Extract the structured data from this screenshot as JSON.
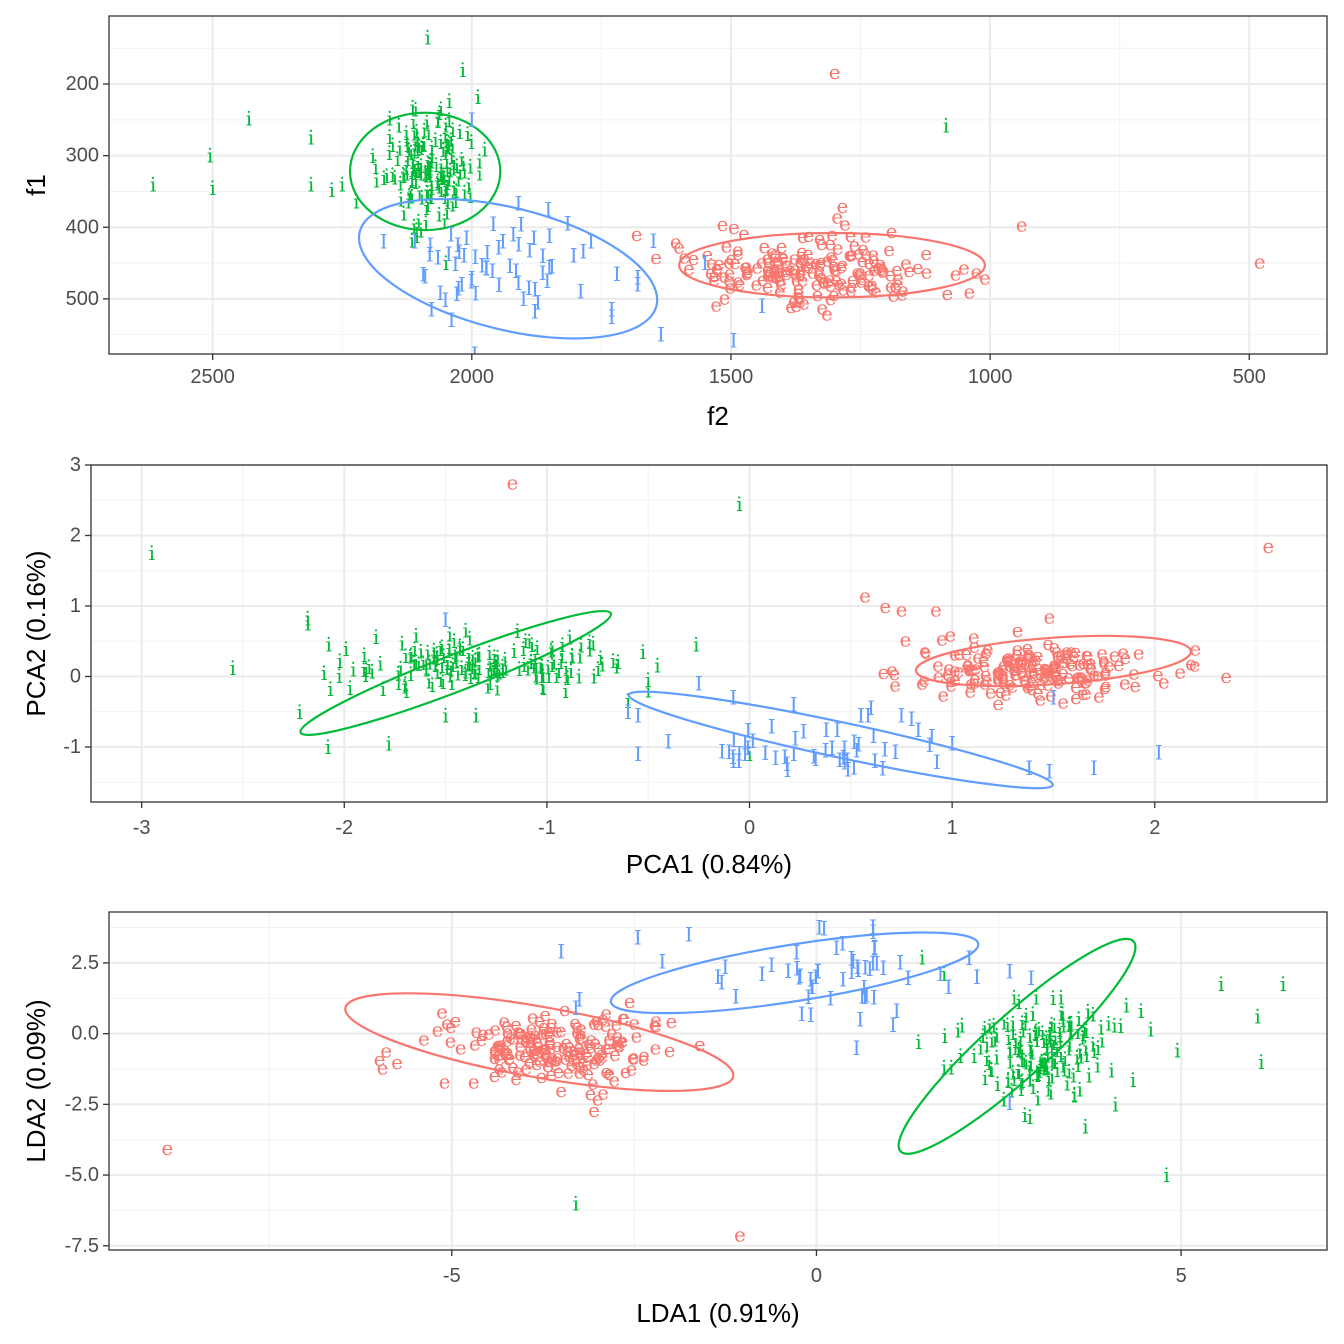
{
  "chart_data": [
    {
      "type": "scatter",
      "xlabel": "f2",
      "ylabel": "f1",
      "xlim": [
        2700,
        350
      ],
      "ylim": [
        577,
        105
      ],
      "xticks": [
        2500,
        2000,
        1500,
        1000,
        500
      ],
      "xtick_labels": [
        "2500",
        "2000",
        "1500",
        "1000",
        "500"
      ],
      "yticks": [
        200,
        300,
        400,
        500
      ],
      "ytick_labels": [
        "200",
        "300",
        "400",
        "500"
      ],
      "grid": true,
      "series": [
        {
          "name": "e",
          "color": "#F8766D",
          "clusters": [
            {
              "cx": 1330,
              "cy": 455,
              "sx": 120,
              "sy": 22,
              "n": 190
            }
          ],
          "points": [
            [
              1300,
              183
            ],
            [
              480,
              448
            ],
            [
              1285,
              370
            ],
            [
              1295,
              385
            ],
            [
              1280,
              395
            ],
            [
              1395,
              460
            ],
            [
              1040,
              490
            ],
            [
              1010,
              470
            ]
          ],
          "ellipse": {
            "cx": 1305,
            "cy": 453,
            "rx": 295,
            "ry": 45
          }
        },
        {
          "name": "i",
          "color": "#00BA38",
          "clusters": [
            {
              "cx": 2085,
              "cy": 320,
              "sx": 45,
              "sy": 40,
              "n": 160
            }
          ],
          "points": [
            [
              2085,
              135
            ],
            [
              2430,
              248
            ],
            [
              2615,
              340
            ],
            [
              2505,
              300
            ],
            [
              2500,
              345
            ],
            [
              2310,
              275
            ],
            [
              2310,
              340
            ],
            [
              2270,
              348
            ],
            [
              2250,
              340
            ],
            [
              1985,
              308
            ],
            [
              1985,
              325
            ],
            [
              2050,
              450
            ],
            [
              1085,
              258
            ]
          ],
          "ellipse": {
            "cx": 2090,
            "cy": 322,
            "rx": 145,
            "ry": 82
          }
        },
        {
          "name": "I",
          "color": "#619CFF",
          "clusters": [
            {
              "cx": 1950,
              "cy": 460,
              "sx": 110,
              "sy": 40,
              "n": 48
            }
          ],
          "points": [
            [
              2170,
              420
            ],
            [
              2110,
              420
            ],
            [
              2080,
              425
            ],
            [
              2040,
              410
            ],
            [
              2010,
              415
            ],
            [
              1970,
              435
            ],
            [
              1940,
              420
            ],
            [
              1880,
              415
            ],
            [
              1815,
              395
            ],
            [
              1850,
              412
            ],
            [
              1770,
              420
            ],
            [
              1720,
              465
            ],
            [
              1680,
              480
            ],
            [
              1730,
              515
            ],
            [
              1730,
              525
            ],
            [
              1635,
              550
            ],
            [
              1495,
              558
            ],
            [
              1550,
              450
            ],
            [
              1440,
              510
            ],
            [
              2000,
              250
            ],
            [
              1920,
              410
            ],
            [
              1900,
              500
            ],
            [
              1790,
              490
            ],
            [
              1680,
              470
            ]
          ],
          "ellipse": {
            "cx": 1930,
            "cy": 458,
            "rx": 295,
            "ry": 85,
            "angle": 14
          }
        }
      ]
    },
    {
      "type": "scatter",
      "xlabel": "PCA1 (0.84%)",
      "ylabel": "PCA2 (0.16%)",
      "xlim": [
        -3.25,
        2.85
      ],
      "ylim": [
        -1.78,
        3.0
      ],
      "xticks": [
        -3,
        -2,
        -1,
        0,
        1,
        2
      ],
      "xtick_labels": [
        "-3",
        "-2",
        "-1",
        "0",
        "1",
        "2"
      ],
      "yticks": [
        -1,
        0,
        1,
        2,
        3
      ],
      "ytick_labels": [
        "-1",
        "0",
        "1",
        "2",
        "3"
      ],
      "grid": true,
      "series": [
        {
          "name": "e",
          "color": "#F8766D",
          "clusters": [
            {
              "cx": 1.4,
              "cy": 0.1,
              "sx": 0.28,
              "sy": 0.2,
              "n": 190
            }
          ],
          "points": [
            [
              -1.17,
              2.75
            ],
            [
              2.56,
              1.85
            ],
            [
              0.57,
              1.15
            ],
            [
              0.67,
              1.0
            ],
            [
              0.75,
              0.95
            ],
            [
              0.92,
              0.95
            ],
            [
              2.2,
              0.4
            ],
            [
              1.48,
              0.85
            ]
          ],
          "ellipse": {
            "cx": 1.5,
            "cy": 0.22,
            "rx": 0.68,
            "ry": 0.33,
            "angle": -4
          }
        },
        {
          "name": "i",
          "color": "#00BA38",
          "clusters": [
            {
              "cx": -1.3,
              "cy": 0.2,
              "sx": 0.35,
              "sy": 0.18,
              "n": 170
            }
          ],
          "points": [
            [
              -2.95,
              1.75
            ],
            [
              -0.05,
              2.45
            ],
            [
              -2.55,
              0.12
            ],
            [
              -2.18,
              0.82
            ],
            [
              -2.18,
              0.75
            ],
            [
              -2.1,
              0.05
            ],
            [
              -2.22,
              -0.5
            ],
            [
              -2.08,
              -1.0
            ],
            [
              -1.78,
              -0.95
            ],
            [
              -0.5,
              -0.2
            ],
            [
              -0.5,
              -0.05
            ],
            [
              0.0,
              -1.1
            ],
            [
              -0.6,
              -0.35
            ],
            [
              -1.5,
              -0.55
            ],
            [
              -1.35,
              -0.55
            ]
          ],
          "ellipse": {
            "cx": -1.45,
            "cy": 0.05,
            "rx": 0.82,
            "ry": 0.26,
            "angle": -21
          }
        },
        {
          "name": "I",
          "color": "#619CFF",
          "clusters": [
            {
              "cx": 0.3,
              "cy": -0.95,
              "sx": 0.35,
              "sy": 0.22,
              "n": 48
            }
          ],
          "points": [
            [
              -1.5,
              0.8
            ],
            [
              -0.6,
              -0.5
            ],
            [
              -0.25,
              -0.1
            ],
            [
              -0.08,
              -0.3
            ],
            [
              -0.55,
              -0.55
            ],
            [
              0.55,
              -0.55
            ],
            [
              0.6,
              -0.45
            ],
            [
              0.75,
              -0.55
            ],
            [
              0.8,
              -0.6
            ],
            [
              1.38,
              -1.3
            ],
            [
              1.48,
              -1.35
            ],
            [
              1.7,
              -1.3
            ],
            [
              2.02,
              -1.08
            ],
            [
              1.5,
              -0.3
            ],
            [
              -0.55,
              -1.1
            ],
            [
              0.9,
              -0.85
            ],
            [
              1.0,
              -0.95
            ]
          ],
          "ellipse": {
            "cx": 0.45,
            "cy": -0.9,
            "rx": 1.07,
            "ry": 0.25,
            "angle": 12
          }
        }
      ]
    },
    {
      "type": "scatter",
      "xlabel": "LDA1 (0.91%)",
      "ylabel": "LDA2 (0.09%)",
      "xlim": [
        -9.7,
        7.0
      ],
      "ylim": [
        -7.65,
        4.3
      ],
      "xticks": [
        -5,
        0,
        5
      ],
      "xtick_labels": [
        "-5",
        "0",
        "5"
      ],
      "yticks": [
        -7.5,
        -5.0,
        -2.5,
        0.0,
        2.5
      ],
      "ytick_labels": [
        "-7.5",
        "-5.0",
        "-2.5",
        "0.0",
        "2.5"
      ],
      "grid": true,
      "series": [
        {
          "name": "e",
          "color": "#F8766D",
          "clusters": [
            {
              "cx": -3.6,
              "cy": -0.4,
              "sx": 0.75,
              "sy": 0.55,
              "n": 190
            }
          ],
          "points": [
            [
              -8.9,
              -4.05
            ],
            [
              -1.05,
              -7.1
            ],
            [
              -5.9,
              -0.6
            ],
            [
              -5.95,
              -1.2
            ],
            [
              -5.75,
              -1.0
            ],
            [
              -3.5,
              -2.0
            ],
            [
              -3.1,
              -2.1
            ],
            [
              -3.0,
              -2.3
            ],
            [
              -3.05,
              -2.7
            ],
            [
              -2.5,
              0.4
            ],
            [
              -2.2,
              0.3
            ],
            [
              -5.1,
              -1.7
            ],
            [
              -4.7,
              -1.7
            ]
          ],
          "ellipse": {
            "cx": -3.8,
            "cy": -0.3,
            "rx": 2.7,
            "ry": 1.25,
            "angle": 10
          }
        },
        {
          "name": "i",
          "color": "#00BA38",
          "clusters": [
            {
              "cx": 3.1,
              "cy": -0.6,
              "sx": 0.45,
              "sy": 0.8,
              "n": 170
            }
          ],
          "points": [
            [
              -3.3,
              -6.0
            ],
            [
              4.8,
              -5.0
            ],
            [
              5.55,
              1.75
            ],
            [
              6.4,
              1.75
            ],
            [
              6.05,
              0.6
            ],
            [
              6.1,
              -1.0
            ],
            [
              4.95,
              -0.6
            ],
            [
              1.45,
              2.7
            ],
            [
              1.75,
              2.1
            ],
            [
              1.4,
              -0.3
            ],
            [
              1.75,
              -1.2
            ],
            [
              1.85,
              -1.2
            ],
            [
              4.1,
              -2.5
            ],
            [
              4.25,
              1.0
            ],
            [
              4.45,
              0.8
            ]
          ],
          "ellipse": {
            "cx": 2.75,
            "cy": -0.45,
            "rx": 2.15,
            "ry": 1.1,
            "angle": -42
          }
        },
        {
          "name": "I",
          "color": "#619CFF",
          "clusters": [
            {
              "cx": 0.4,
              "cy": 2.3,
              "sx": 0.9,
              "sy": 0.55,
              "n": 48
            }
          ],
          "points": [
            [
              -3.5,
              2.9
            ],
            [
              -2.45,
              3.4
            ],
            [
              -1.75,
              3.5
            ],
            [
              -3.25,
              1.2
            ],
            [
              -3.3,
              0.9
            ],
            [
              -1.25,
              2.35
            ],
            [
              -1.35,
              2.0
            ],
            [
              -1.3,
              1.8
            ],
            [
              2.65,
              -2.45
            ],
            [
              1.05,
              0.3
            ],
            [
              0.6,
              0.5
            ],
            [
              0.55,
              -0.5
            ],
            [
              1.1,
              0.8
            ],
            [
              -0.2,
              0.7
            ],
            [
              2.65,
              2.2
            ],
            [
              2.2,
              2.0
            ],
            [
              1.7,
              2.1
            ]
          ],
          "ellipse": {
            "cx": -0.3,
            "cy": 2.15,
            "rx": 2.55,
            "ry": 1.0,
            "angle": -9
          }
        }
      ]
    }
  ]
}
